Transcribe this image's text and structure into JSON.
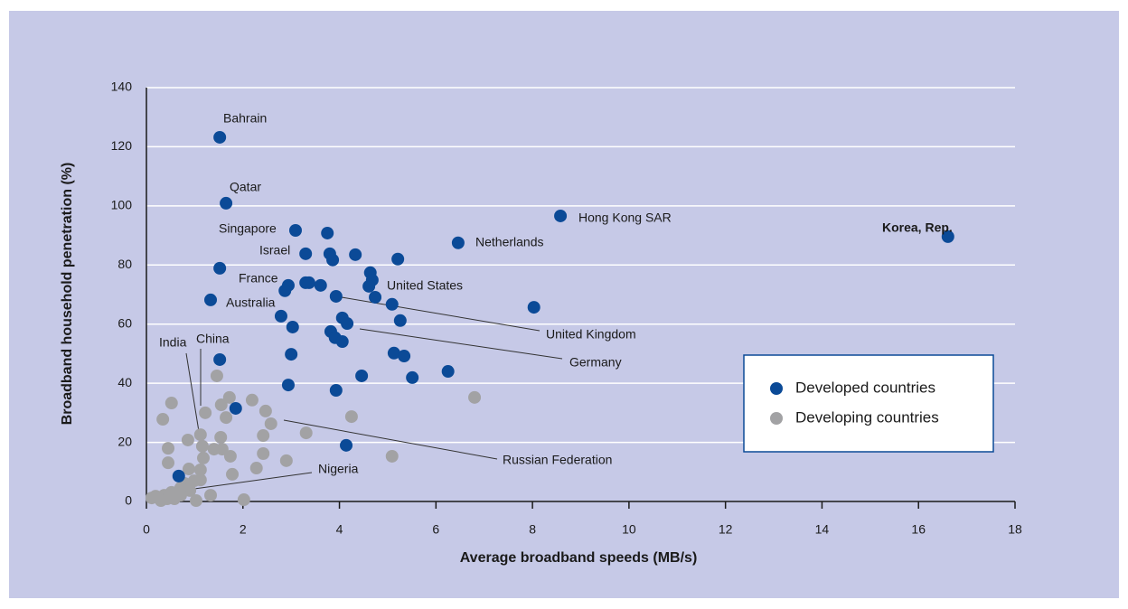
{
  "chart_data": {
    "type": "scatter",
    "xlabel": "Average broadband speeds (MB/s)",
    "ylabel": "Broadband household penetration (%)",
    "xlim": [
      0,
      18
    ],
    "ylim": [
      0,
      140
    ],
    "xticks": [
      0,
      2,
      4,
      6,
      8,
      10,
      12,
      14,
      16,
      18
    ],
    "yticks": [
      0,
      20,
      40,
      60,
      80,
      100,
      120,
      140
    ],
    "grid": true,
    "legend_position": "right",
    "series": [
      {
        "name": "Developed countries",
        "color": "#0b4a97",
        "x": [
          1.52,
          1.65,
          3.09,
          3.75,
          1.52,
          3.3,
          3.8,
          3.86,
          4.33,
          4.64,
          5.21,
          2.94,
          2.87,
          3.3,
          3.37,
          3.61,
          4.68,
          4.61,
          4.74,
          3.93,
          5.09,
          8.03,
          1.33,
          2.79,
          3.03,
          4.06,
          4.16,
          5.26,
          3.82,
          3.91,
          4.06,
          3.0,
          1.52,
          5.13,
          5.34,
          4.46,
          5.51,
          6.25,
          2.94,
          3.93,
          1.85,
          4.14,
          6.46,
          8.58,
          16.61,
          0.67
        ],
        "values": [
          123.2,
          100.9,
          91.7,
          90.8,
          78.9,
          83.8,
          83.8,
          81.7,
          83.5,
          77.4,
          82.0,
          73.1,
          71.3,
          74.0,
          74.0,
          73.1,
          74.9,
          72.8,
          69.1,
          69.4,
          66.7,
          65.7,
          68.2,
          62.7,
          59.0,
          62.1,
          60.2,
          61.2,
          57.5,
          55.4,
          54.1,
          49.8,
          48.0,
          50.2,
          49.2,
          42.5,
          41.9,
          44.0,
          39.4,
          37.6,
          31.5,
          19.0,
          87.5,
          96.6,
          89.6,
          8.6
        ]
      },
      {
        "name": "Developing countries",
        "color": "#a2a2a4",
        "x": [
          1.46,
          0.52,
          1.55,
          1.72,
          2.19,
          6.8,
          0.34,
          1.22,
          1.65,
          2.47,
          2.58,
          4.25,
          3.31,
          0.45,
          1.12,
          1.54,
          2.42,
          1.16,
          1.4,
          1.57,
          1.18,
          1.74,
          2.42,
          5.09,
          0.45,
          0.86,
          2.9,
          0.88,
          1.12,
          1.78,
          2.28,
          0.79,
          0.99,
          1.12,
          0.71,
          0.9,
          0.52,
          0.37,
          0.19,
          0.11,
          0.26,
          0.43,
          0.58,
          1.03,
          1.33,
          2.02,
          0.3,
          0.71
        ],
        "values": [
          42.5,
          33.3,
          32.7,
          35.2,
          34.3,
          35.2,
          27.8,
          30.0,
          28.4,
          30.6,
          26.3,
          28.7,
          23.2,
          18.0,
          22.6,
          21.7,
          22.3,
          18.7,
          17.7,
          17.7,
          14.7,
          15.3,
          16.2,
          15.3,
          13.1,
          20.8,
          13.8,
          11.0,
          10.7,
          9.2,
          11.3,
          6.1,
          7.0,
          7.3,
          4.6,
          3.7,
          3.1,
          2.1,
          1.8,
          1.2,
          1.2,
          0.9,
          0.9,
          0.3,
          2.1,
          0.6,
          0.3,
          2.1
        ]
      }
    ],
    "annotations": [
      "Bahrain",
      "Qatar",
      "Singapore",
      "Israel",
      "France",
      "Australia",
      "United States",
      "Hong Kong SAR",
      "Netherlands",
      "Korea, Rep.",
      "United Kingdom",
      "Germany",
      "India",
      "China",
      "Russian Federation",
      "Nigeria"
    ]
  }
}
